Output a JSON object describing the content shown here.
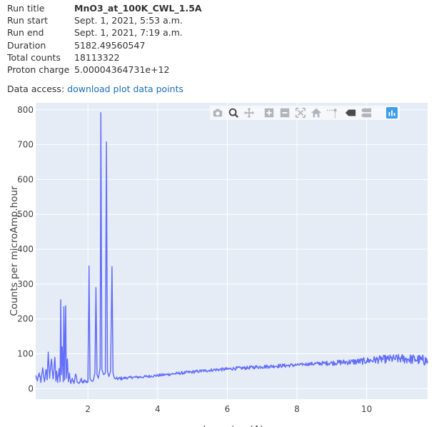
{
  "run_info": [
    {
      "key": "Run title",
      "value": "MnO3_at_100K_CWL_1.5A",
      "bold": true
    },
    {
      "key": "Run start",
      "value": "Sept. 1, 2021, 5:53 a.m."
    },
    {
      "key": "Run end",
      "value": "Sept. 1, 2021, 7:19 a.m."
    },
    {
      "key": "Duration",
      "value": "5182.49560547"
    },
    {
      "key": "Total counts",
      "value": "18113322"
    },
    {
      "key": "Proton charge",
      "value": "5.00004364731e+12"
    }
  ],
  "data_access": {
    "label": "Data access:",
    "link": "download plot data points"
  },
  "colors": {
    "line": "#636efa",
    "plot_bg": "#e5ecf6",
    "grid": "#ffffff",
    "modebar_icon": "#b0b4bd",
    "modebar_active": "#4a4a4a",
    "modebar_logo": "#3f9ee8"
  },
  "modebar": [
    "camera-icon",
    "zoom-icon",
    "pan-icon",
    "zoom-in-icon",
    "zoom-out-icon",
    "autoscale-icon",
    "reset-axes-icon",
    "spike-lines-icon",
    "hover-closest-icon",
    "hover-compare-icon",
    "plotly-logo-icon"
  ],
  "chart_data": {
    "type": "line",
    "title": "",
    "xlabel": "d-spacing (A)",
    "ylabel": "Counts per microAmp.hour",
    "xlim": [
      0.5,
      11.75
    ],
    "ylim": [
      -30,
      820
    ],
    "xticks": [
      2,
      4,
      6,
      8,
      10
    ],
    "yticks": [
      0,
      100,
      200,
      300,
      400,
      500,
      600,
      700,
      800
    ],
    "grid": true,
    "legend": "none",
    "series": [
      {
        "points": [
          [
            0.5,
            38
          ],
          [
            0.55,
            22
          ],
          [
            0.6,
            45
          ],
          [
            0.65,
            18
          ],
          [
            0.7,
            60
          ],
          [
            0.75,
            20
          ],
          [
            0.8,
            55
          ],
          [
            0.83,
            25
          ],
          [
            0.86,
            105
          ],
          [
            0.9,
            30
          ],
          [
            0.95,
            85
          ],
          [
            1.0,
            28
          ],
          [
            1.05,
            90
          ],
          [
            1.08,
            22
          ],
          [
            1.1,
            50
          ],
          [
            1.13,
            18
          ],
          [
            1.17,
            58
          ],
          [
            1.2,
            20
          ],
          [
            1.22,
            255
          ],
          [
            1.24,
            40
          ],
          [
            1.26,
            120
          ],
          [
            1.29,
            20
          ],
          [
            1.31,
            235
          ],
          [
            1.33,
            25
          ],
          [
            1.36,
            238
          ],
          [
            1.38,
            30
          ],
          [
            1.41,
            85
          ],
          [
            1.44,
            20
          ],
          [
            1.47,
            45
          ],
          [
            1.5,
            17
          ],
          [
            1.55,
            30
          ],
          [
            1.6,
            15
          ],
          [
            1.65,
            42
          ],
          [
            1.7,
            18
          ],
          [
            1.75,
            15
          ],
          [
            1.8,
            28
          ],
          [
            1.85,
            16
          ],
          [
            1.9,
            25
          ],
          [
            1.95,
            18
          ],
          [
            2.0,
            20
          ],
          [
            2.03,
            352
          ],
          [
            2.06,
            30
          ],
          [
            2.1,
            22
          ],
          [
            2.15,
            22
          ],
          [
            2.2,
            45
          ],
          [
            2.23,
            290
          ],
          [
            2.26,
            40
          ],
          [
            2.3,
            30
          ],
          [
            2.35,
            60
          ],
          [
            2.37,
            792
          ],
          [
            2.4,
            55
          ],
          [
            2.45,
            40
          ],
          [
            2.5,
            45
          ],
          [
            2.53,
            708
          ],
          [
            2.56,
            50
          ],
          [
            2.6,
            35
          ],
          [
            2.65,
            50
          ],
          [
            2.69,
            350
          ],
          [
            2.72,
            45
          ],
          [
            2.76,
            30
          ],
          [
            2.8,
            28
          ],
          [
            3.0,
            30
          ],
          [
            3.2,
            32
          ],
          [
            3.4,
            33
          ],
          [
            3.6,
            34
          ],
          [
            3.8,
            36
          ],
          [
            4.0,
            38
          ],
          [
            4.2,
            40
          ],
          [
            4.4,
            42
          ],
          [
            4.6,
            44
          ],
          [
            4.8,
            46
          ],
          [
            5.0,
            48
          ],
          [
            5.2,
            50
          ],
          [
            5.4,
            52
          ],
          [
            5.6,
            54
          ],
          [
            5.8,
            55
          ],
          [
            6.0,
            56
          ],
          [
            6.2,
            58
          ],
          [
            6.4,
            59
          ],
          [
            6.6,
            60
          ],
          [
            6.8,
            62
          ],
          [
            7.0,
            63
          ],
          [
            7.2,
            64
          ],
          [
            7.4,
            65
          ],
          [
            7.6,
            66
          ],
          [
            7.8,
            67
          ],
          [
            8.0,
            68
          ],
          [
            8.2,
            70
          ],
          [
            8.4,
            71
          ],
          [
            8.6,
            72
          ],
          [
            8.8,
            73
          ],
          [
            9.0,
            74
          ],
          [
            9.2,
            75
          ],
          [
            9.4,
            76
          ],
          [
            9.6,
            77
          ],
          [
            9.8,
            78
          ],
          [
            10.0,
            80
          ],
          [
            10.2,
            82
          ],
          [
            10.4,
            84
          ],
          [
            10.6,
            85
          ],
          [
            10.8,
            86
          ],
          [
            11.0,
            86
          ],
          [
            11.2,
            85
          ],
          [
            11.4,
            84
          ],
          [
            11.6,
            82
          ],
          [
            11.75,
            80
          ]
        ]
      }
    ]
  }
}
